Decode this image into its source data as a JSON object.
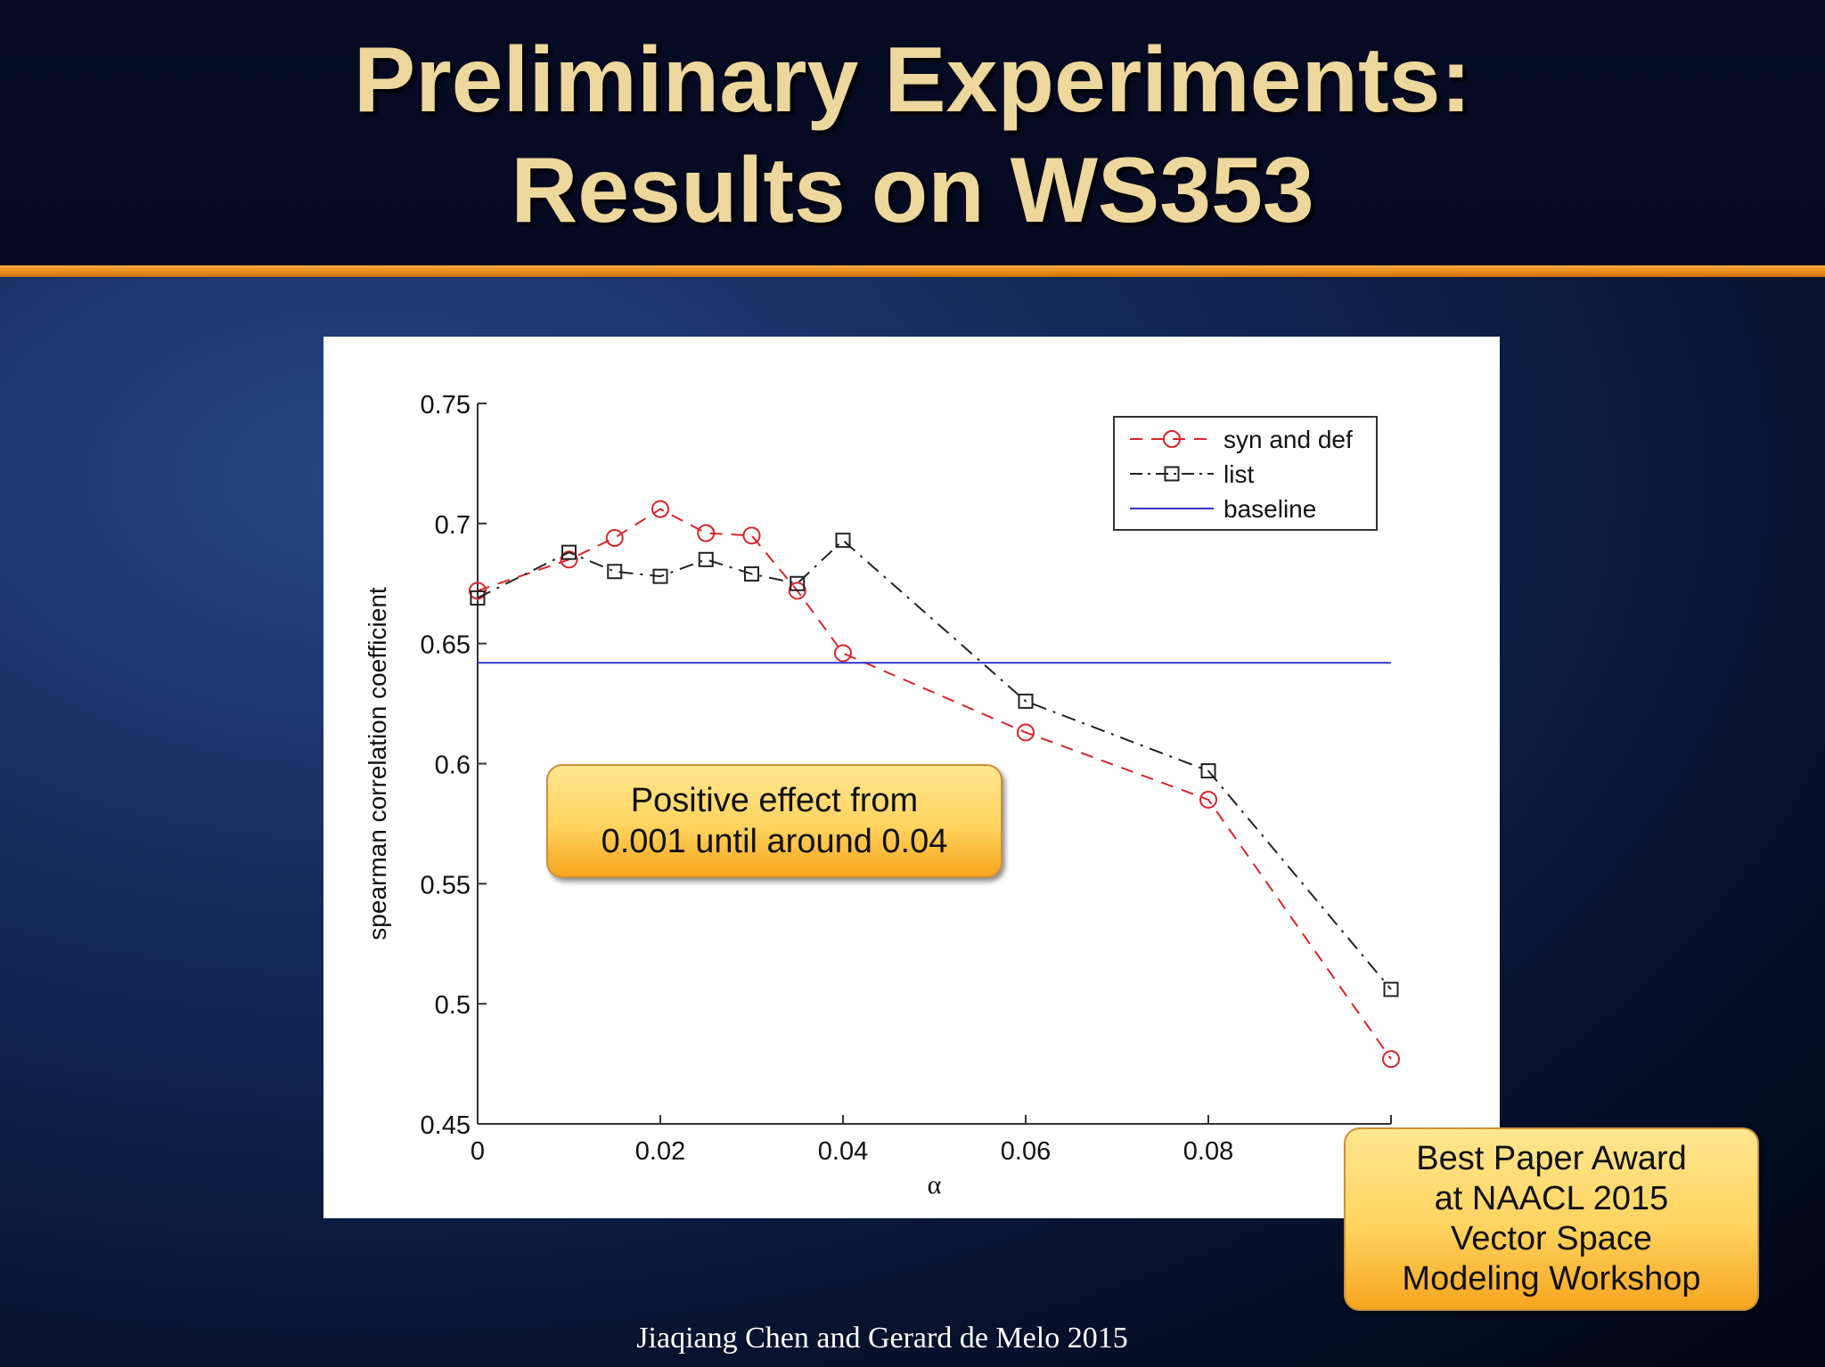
{
  "slide": {
    "title_lines": [
      "Preliminary Experiments:",
      "Results on WS353"
    ],
    "callout_effect_lines": [
      "Positive effect from",
      "0.001 until around 0.04"
    ],
    "callout_award_lines": [
      "Best Paper Award",
      "at NAACL 2015",
      "Vector Space",
      "Modeling Workshop"
    ],
    "footer": "Jiaqiang Chen and Gerard de Melo 2015",
    "colors": {
      "title": "#eed79c",
      "header_rule": "#e88a1a",
      "callout": "#ffd35e"
    }
  },
  "chart_data": {
    "type": "line",
    "title": "",
    "xlabel": "α",
    "ylabel": "spearman correlation coefficient",
    "xlim": [
      0,
      0.1
    ],
    "ylim": [
      0.45,
      0.75
    ],
    "xticks": [
      0,
      0.02,
      0.04,
      0.06,
      0.08
    ],
    "xtick_labels": [
      "0",
      "0.02",
      "0.04",
      "0.06",
      "0.08"
    ],
    "yticks": [
      0.45,
      0.5,
      0.55,
      0.6,
      0.65,
      0.7,
      0.75
    ],
    "ytick_labels": [
      "0.45",
      "0.5",
      "0.55",
      "0.6",
      "0.65",
      "0.7",
      "0.75"
    ],
    "grid": false,
    "legend_position": "top-right",
    "series": [
      {
        "name": "syn and def",
        "color": "#d9252a",
        "line_style": "dashed",
        "marker": "circle",
        "x": [
          0,
          0.01,
          0.015,
          0.02,
          0.025,
          0.03,
          0.035,
          0.04,
          0.06,
          0.08,
          0.1
        ],
        "y": [
          0.672,
          0.685,
          0.694,
          0.706,
          0.696,
          0.695,
          0.672,
          0.646,
          0.613,
          0.585,
          0.477
        ]
      },
      {
        "name": "list",
        "color": "#222222",
        "line_style": "dashdot",
        "marker": "square",
        "x": [
          0,
          0.01,
          0.015,
          0.02,
          0.025,
          0.03,
          0.035,
          0.04,
          0.06,
          0.08,
          0.1
        ],
        "y": [
          0.669,
          0.688,
          0.68,
          0.678,
          0.685,
          0.679,
          0.675,
          0.693,
          0.626,
          0.597,
          0.506
        ]
      },
      {
        "name": "baseline",
        "color": "#3333cc",
        "line_style": "solid",
        "marker": "none",
        "x": [
          0,
          0.1
        ],
        "y": [
          0.642,
          0.642
        ]
      }
    ]
  }
}
